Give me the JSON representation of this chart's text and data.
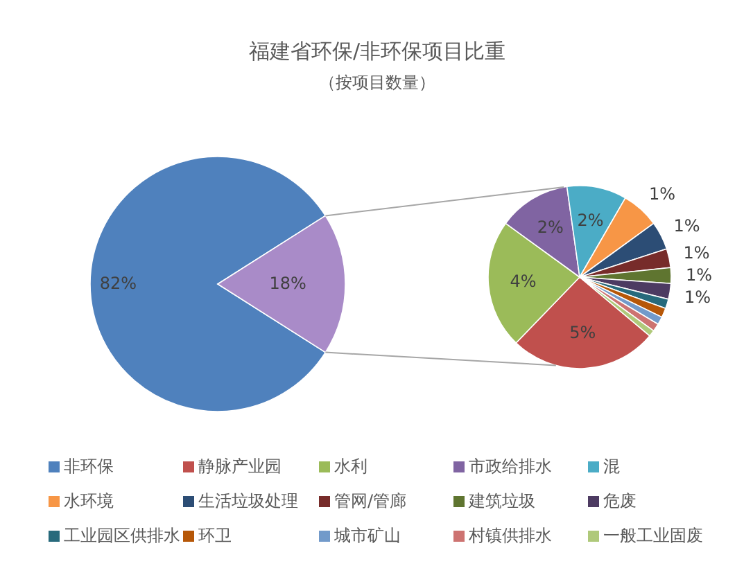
{
  "chart_data": [
    {
      "type": "pie",
      "title": "福建省环保/非环保项目比重",
      "subtitle": "（按项目数量）",
      "categories": [
        "非环保",
        null
      ],
      "values": [
        82,
        18
      ],
      "colors": [
        "#4f81bd",
        "#a98bc8"
      ],
      "value_labels": [
        "82%",
        "18%"
      ],
      "legend": "bottom"
    },
    {
      "type": "pie",
      "categories": [
        "静脉产业园",
        "水利",
        "市政给排水",
        "混",
        "水环境",
        "生活垃圾处理",
        "管网/管廊",
        "建筑垃圾",
        "危废",
        "工业园区供排水",
        "环卫",
        "城市矿山",
        "村镇供排水",
        "一般工业固废"
      ],
      "values": [
        4.7,
        4.1,
        2.3,
        1.9,
        1.2,
        0.9,
        0.6,
        0.5,
        0.5,
        0.3,
        0.3,
        0.25,
        0.25,
        0.2
      ],
      "colors": [
        "#c0504d",
        "#9bbb59",
        "#8064a2",
        "#4bacc6",
        "#f79646",
        "#2c4d75",
        "#772c2a",
        "#5f7530",
        "#4d3b62",
        "#276a7c",
        "#b65708",
        "#729aca",
        "#cd7371",
        "#afc97a"
      ],
      "value_labels": [
        "5%",
        "4%",
        "2%",
        "2%",
        "1%",
        "1%",
        "1%",
        "1%",
        "1%",
        null,
        null,
        null,
        null,
        null
      ],
      "legend": "bottom"
    }
  ]
}
